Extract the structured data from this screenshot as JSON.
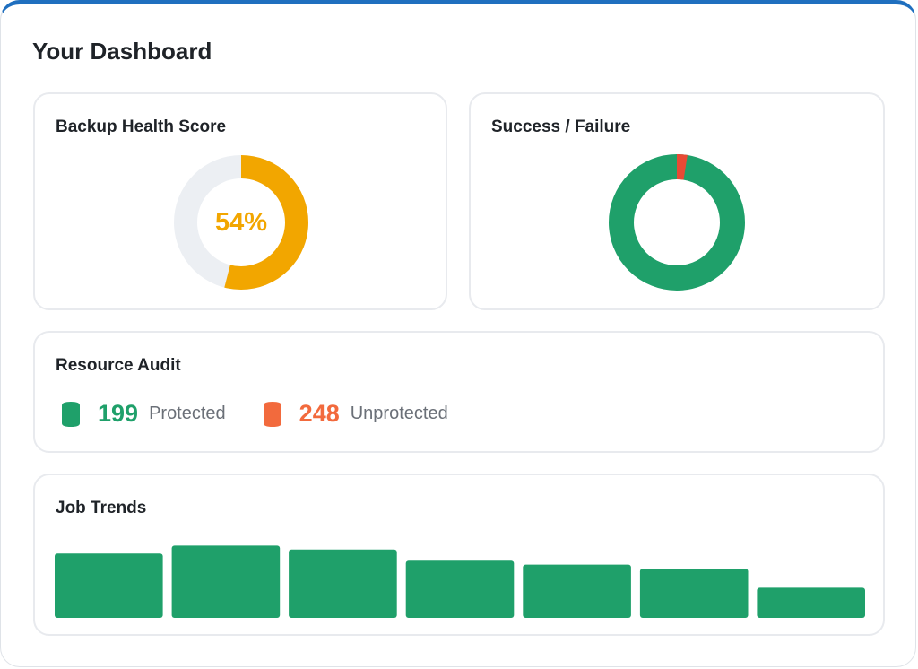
{
  "page": {
    "title": "Your Dashboard"
  },
  "health": {
    "title": "Backup Health Score",
    "score_label": "54%",
    "score": 0.54,
    "color": "#f2a600",
    "track_color": "#eceff3"
  },
  "success_failure": {
    "title": "Success / Failure",
    "success_fraction": 0.975,
    "success_color": "#1fa06a",
    "failure_color": "#e84a35"
  },
  "audit": {
    "title": "Resource Audit",
    "protected": {
      "count": "199",
      "label": "Protected",
      "color": "#1fa06a",
      "icon": "database-icon"
    },
    "unprotected": {
      "count": "248",
      "label": "Unprotected",
      "color": "#f26a3d",
      "icon": "database-icon"
    }
  },
  "trends": {
    "title": "Job Trends"
  },
  "chart_data": {
    "type": "bar",
    "categories": [
      "",
      "",
      "",
      "",
      "",
      "",
      ""
    ],
    "values": [
      64,
      72,
      68,
      57,
      53,
      49,
      30
    ],
    "ylim": [
      0,
      75
    ],
    "color": "#1fa06a",
    "grid": false
  }
}
